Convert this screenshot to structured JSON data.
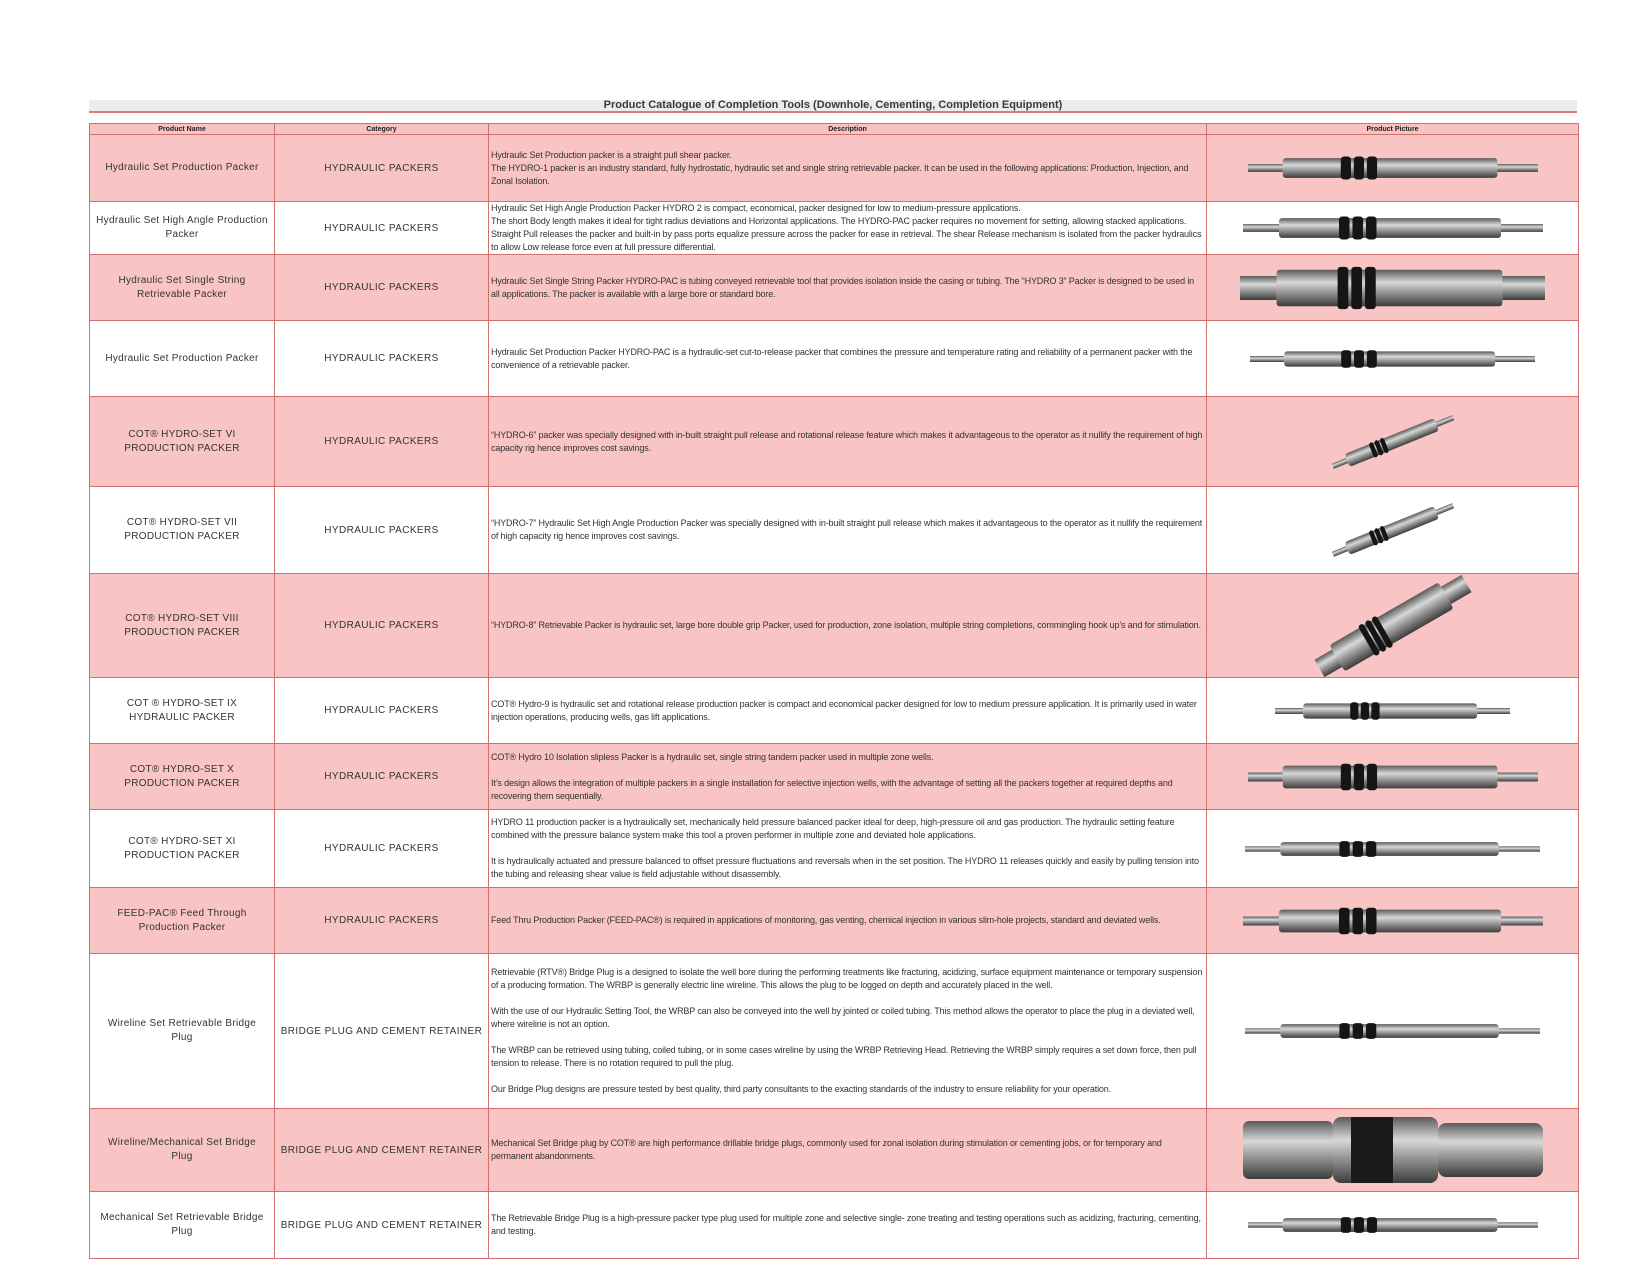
{
  "title": "Product Catalogue of Completion Tools (Downhole, Cementing, Completion Equipment)",
  "columns": [
    "Product Name",
    "Category",
    "Description",
    "Product Picture"
  ],
  "colors": {
    "row_highlight": "#f9c4c4",
    "border": "#d27070",
    "title_underline": "#e07a7a"
  },
  "rows": [
    {
      "name": "Hydraulic Set Production Packer",
      "category": "HYDRAULIC PACKERS",
      "tight": true,
      "description": [
        "Hydraulic Set Production packer is a straight pull shear packer.",
        "The HYDRO-1 packer is an industry standard, fully hydrostatic, hydraulic set and single string retrievable packer. It can be used in the following applications: Production, Injection, and Zonal Isolation."
      ],
      "image": "packer-image"
    },
    {
      "name": "Hydraulic Set High Angle Production Packer",
      "category": "HYDRAULIC PACKERS",
      "tight": true,
      "description": [
        "Hydraulic Set High Angle Production Packer HYDRO 2 is compact, economical, packer designed for low to medium-pressure applications.",
        "The short Body length makes it ideal for tight radius deviations and Horizontal applications. The  HYDRO-PAC packer requires no movement for setting, allowing stacked applications. Straight Pull releases the packer and built-in by pass ports equalize pressure across the packer for ease in retrieval. The shear Release mechanism is isolated from the packer hydraulics to allow Low release  force even at full pressure differential."
      ],
      "image": "packer-image"
    },
    {
      "name": "Hydraulic Set Single String Retrievable Packer",
      "category": "HYDRAULIC PACKERS",
      "description": [
        "Hydraulic Set Single String Packer HYDRO-PAC is tubing conveyed retrievable tool that provides isolation inside the casing or tubing. The “HYDRO 3” Packer is designed to be used in all applications. The packer is available with a large bore or standard bore."
      ],
      "image": "packer-image"
    },
    {
      "name": "Hydraulic Set Production Packer",
      "category": "HYDRAULIC PACKERS",
      "description": [
        "Hydraulic Set Production Packer HYDRO-PAC is a hydraulic-set cut-to-release packer that combines the pressure and temperature rating and reliability of a permanent packer with the convenience of a retrievable packer."
      ],
      "image": "packer-image"
    },
    {
      "name": "COT® HYDRO-SET VI PRODUCTION PACKER",
      "category": "HYDRAULIC PACKERS",
      "description": [
        "“HYDRO-6” packer was specially designed with in-built straight pull release and rotational release feature which makes it advantageous to the operator as it nullify the requirement of high capacity rig hence improves cost savings."
      ],
      "image": "packer-image"
    },
    {
      "name": "COT® HYDRO-SET VII PRODUCTION PACKER",
      "category": "HYDRAULIC PACKERS",
      "description": [
        "“HYDRO-7” Hydraulic Set High Angle Production Packer was specially designed with in-built straight pull release which makes it advantageous to the operator as it nullify the requirement of high capacity rig hence improves cost savings."
      ],
      "image": "packer-image"
    },
    {
      "name": "COT® HYDRO-SET VIII PRODUCTION PACKER",
      "category": "HYDRAULIC PACKERS",
      "description": [
        "“HYDRO-8” Retrievable Packer is hydraulic set, large bore double grip Packer, used for production, zone isolation, multiple string completions, commingling hook up’s and for stimulation."
      ],
      "image": "packer-image"
    },
    {
      "name": "COT ® HYDRO-SET IX HYDRAULIC PACKER",
      "category": "HYDRAULIC PACKERS",
      "description": [
        "COT® Hydro-9 is hydraulic set and rotational release production packer is compact and economical packer designed for low to medium pressure application. It is primarily used in water injection operations, producing wells, gas lift  applications."
      ],
      "image": "packer-image"
    },
    {
      "name": "COT® HYDRO-SET X PRODUCTION PACKER",
      "category": "HYDRAULIC PACKERS",
      "description": [
        "COT® Hydro 10 Isolation slipless Packer is a hydraulic set, single string tandem packer used in multiple zone wells.",
        "It’s design allows the integration of multiple packers in a single installation for selective injection wells, with the advantage of setting all the packers together at required depths and recovering them sequentially."
      ],
      "image": "packer-image"
    },
    {
      "name": "COT® HYDRO-SET XI PRODUCTION PACKER",
      "category": "HYDRAULIC PACKERS",
      "description": [
        "HYDRO 11 production packer is a hydraulically set, mechanically held pressure balanced packer ideal for deep, high-pressure oil and gas production. The hydraulic setting feature combined with the pressure balance system make this tool a proven performer in multiple zone and deviated hole applications.",
        "It is hydraulically actuated and pressure balanced to offset pressure fluctuations and reversals when in the set position. The HYDRO 11 releases quickly and easily by pulling tension into the tubing and releasing shear value is field adjustable without disassembly."
      ],
      "image": "packer-image"
    },
    {
      "name": "FEED-PAC® Feed Through Production Packer",
      "category": "HYDRAULIC PACKERS",
      "description": [
        "Feed Thru Production Packer (FEED-PAC®) is required in applications of monitoring, gas venting, chemical injection in various slim-hole projects, standard and deviated wells."
      ],
      "image": "packer-image"
    },
    {
      "name": "Wireline Set Retrievable Bridge Plug",
      "category": "BRIDGE PLUG AND CEMENT RETAINER",
      "description": [
        "Retrievable (RTV®)  Bridge Plug is a designed to isolate the well bore during the performing treatments like fracturing, acidizing, surface equipment maintenance or temporary suspension of a producing formation. The WRBP  is  generally electric line wireline. This allows the plug to be logged on depth and accurately placed in the well.",
        "With the use of our Hydraulic Setting Tool, the WRBP can also be conveyed into the well by jointed or coiled tubing. This method allows the operator to place the plug in a deviated well, where wireline is not an option.",
        "The WRBP can be retrieved using tubing, coiled tubing, or in some cases wireline by using the WRBP Retrieving Head. Retrieving the WRBP simply requires a set down force, then pull tension to release. There is no rotation required to pull the plug.",
        "Our Bridge Plug designs are pressure tested by best quality, third party consultants to the exacting standards of the industry to ensure reliability for your operation."
      ],
      "image": "bridge-plug-image"
    },
    {
      "name": "Wireline/Mechanical Set Bridge Plug",
      "category": "BRIDGE PLUG AND CEMENT RETAINER",
      "description": [
        "Mechanical Set Bridge plug by COT® are high performance drillable bridge plugs, commonly used for zonal isolation during stimulation or cementing jobs, or for temporary and permanent abandonments."
      ],
      "image": "bridge-plug-image"
    },
    {
      "name": "Mechanical Set Retrievable Bridge Plug",
      "category": "BRIDGE PLUG AND CEMENT RETAINER",
      "description": [
        "The Retrievable Bridge Plug is a high-pressure packer type plug used for multiple zone and selective single- zone treating and testing operations such as acidizing, fracturing, cementing, and testing."
      ],
      "image": "bridge-plug-image"
    }
  ]
}
